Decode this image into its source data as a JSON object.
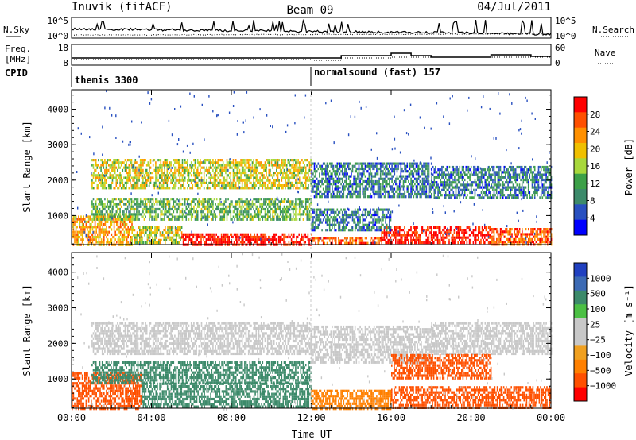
{
  "header": {
    "station": "Inuvik (fitACF)",
    "beam": "Beam 09",
    "date": "04/Jul/2011"
  },
  "sky_panel": {
    "left_label": "N.Sky",
    "right_label": "N.Search",
    "left_ticks": [
      "10^5",
      "10^0"
    ],
    "right_ticks": [
      "10^5",
      "10^0"
    ]
  },
  "freq_panel": {
    "left_label_line1": "Freq.",
    "left_label_line2": "[MHz]",
    "right_label": "Nave",
    "left_ticks": [
      "18",
      "8"
    ],
    "right_ticks": [
      "60",
      "0"
    ]
  },
  "cpid_panel": {
    "label": "CPID",
    "programs": [
      {
        "name": "themis 3300",
        "start_hour": 0
      },
      {
        "name": "normalsound (fast) 157",
        "start_hour": 12
      }
    ]
  },
  "chart_data": [
    {
      "type": "heatmap",
      "name": "power",
      "ylabel": "Slant Range [km]",
      "xlabel": "",
      "ylim": [
        180,
        4550
      ],
      "yticks": [
        1000,
        2000,
        3000,
        4000
      ],
      "colorbar_label": "Power [dB]",
      "colorbar_ticks": [
        "28",
        "24",
        "20",
        "16",
        "12",
        "8",
        "4"
      ],
      "colorbar_colors": [
        "#ff0000",
        "#ff5000",
        "#ff9000",
        "#f0c000",
        "#a8d83c",
        "#3ca048",
        "#3c8a6a",
        "#2850c0",
        "#0000ff"
      ],
      "bands": [
        {
          "t0": 0.0,
          "t1": 3.0,
          "r0": 200,
          "r1": 1000,
          "level": 20
        },
        {
          "t0": 3.0,
          "t1": 5.5,
          "r0": 250,
          "r1": 700,
          "level": 16
        },
        {
          "t0": 5.5,
          "t1": 12.0,
          "r0": 200,
          "r1": 500,
          "level": 28
        },
        {
          "t0": 12.0,
          "t1": 15.5,
          "r0": 200,
          "r1": 400,
          "level": 24
        },
        {
          "t0": 15.5,
          "t1": 21.0,
          "r0": 200,
          "r1": 700,
          "level": 28
        },
        {
          "t0": 21.0,
          "t1": 24.0,
          "r0": 200,
          "r1": 650,
          "level": 24
        },
        {
          "t0": 1.0,
          "t1": 12.0,
          "r0": 1800,
          "r1": 2600,
          "level": 16
        },
        {
          "t0": 12.0,
          "t1": 18.0,
          "r0": 1500,
          "r1": 2500,
          "level": 8
        },
        {
          "t0": 18.0,
          "t1": 24.0,
          "r0": 1500,
          "r1": 2400,
          "level": 8
        },
        {
          "t0": 1.0,
          "t1": 12.0,
          "r0": 900,
          "r1": 1500,
          "level": 12
        },
        {
          "t0": 12.0,
          "t1": 16.0,
          "r0": 600,
          "r1": 1200,
          "level": 8
        }
      ]
    },
    {
      "type": "heatmap",
      "name": "velocity",
      "ylabel": "Slant Range [km]",
      "xlabel": "Time UT",
      "ylim": [
        180,
        4550
      ],
      "yticks": [
        1000,
        2000,
        3000,
        4000
      ],
      "xticks": [
        "00:00",
        "04:00",
        "08:00",
        "12:00",
        "16:00",
        "20:00",
        "00:00"
      ],
      "colorbar_label": "Velocity [m s⁻¹]",
      "colorbar_ticks": [
        "1000",
        "500",
        "100",
        "25",
        "−25",
        "−100",
        "−500",
        "−1000"
      ],
      "colorbar_colors": [
        "#2040c0",
        "#3c6ab4",
        "#3c8a6a",
        "#4cc044",
        "#c8c8c8",
        "#c8c8c8",
        "#f0a020",
        "#ff8000",
        "#ff5000",
        "#ff0000"
      ],
      "bands": [
        {
          "t0": 0.0,
          "t1": 3.5,
          "r0": 200,
          "r1": 1200,
          "level": -500
        },
        {
          "t0": 3.5,
          "t1": 12.0,
          "r0": 200,
          "r1": 900,
          "level": 100
        },
        {
          "t0": 12.0,
          "t1": 16.0,
          "r0": 200,
          "r1": 700,
          "level": -100
        },
        {
          "t0": 16.0,
          "t1": 24.0,
          "r0": 200,
          "r1": 800,
          "level": -500
        },
        {
          "t0": 1.0,
          "t1": 12.0,
          "r0": 1700,
          "r1": 2600,
          "level": 0
        },
        {
          "t0": 12.0,
          "t1": 18.0,
          "r0": 1500,
          "r1": 2500,
          "level": 0
        },
        {
          "t0": 18.0,
          "t1": 24.0,
          "r0": 1700,
          "r1": 2600,
          "level": 0
        },
        {
          "t0": 16.0,
          "t1": 21.0,
          "r0": 1000,
          "r1": 1700,
          "level": -500
        },
        {
          "t0": 1.0,
          "t1": 12.0,
          "r0": 900,
          "r1": 1500,
          "level": 100
        }
      ]
    }
  ]
}
